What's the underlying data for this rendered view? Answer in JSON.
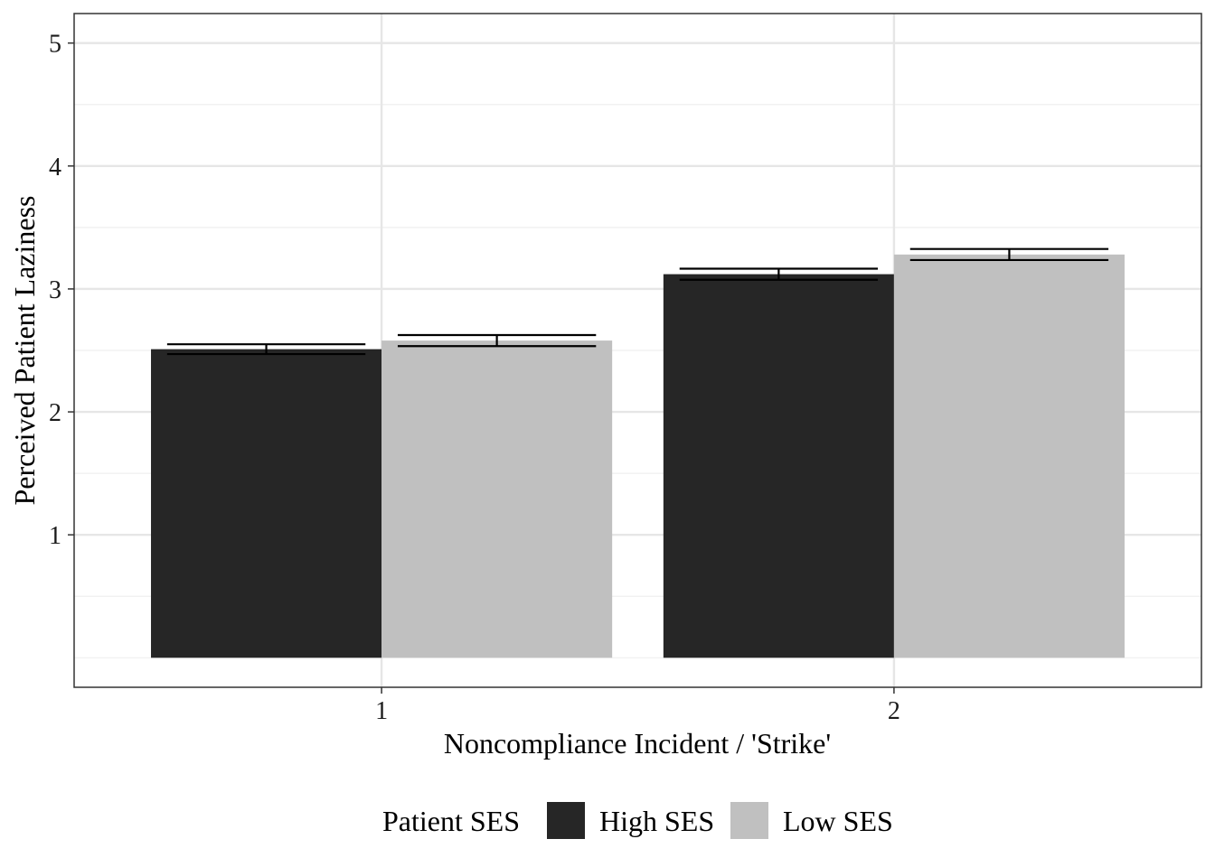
{
  "chart_data": {
    "type": "bar",
    "categories": [
      "1",
      "2"
    ],
    "series": [
      {
        "name": "High SES",
        "values": [
          2.51,
          3.12
        ],
        "error": [
          0.04,
          0.045
        ],
        "color": "#262626"
      },
      {
        "name": "Low SES",
        "values": [
          2.58,
          3.28
        ],
        "error": [
          0.045,
          0.045
        ],
        "color": "#c0c0c0"
      }
    ],
    "xlabel": "Noncompliance Incident / 'Strike'",
    "ylabel": "Perceived Patient Laziness",
    "ylim": [
      -0.24,
      5.24
    ],
    "yticks": [
      1,
      2,
      3,
      4,
      5
    ],
    "grid": true,
    "legend": {
      "title": "Patient SES",
      "position": "bottom"
    }
  },
  "colors": {
    "panel_border": "#333333",
    "grid_major": "#e6e6e6",
    "grid_minor": "#efefef",
    "error_bar": "#000000"
  }
}
